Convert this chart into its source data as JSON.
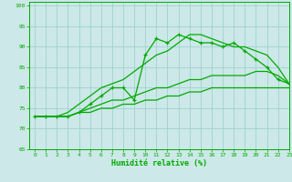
{
  "title": "",
  "xlabel": "Humidité relative (%)",
  "ylabel": "",
  "bg_color": "#cce8e8",
  "line_color": "#00aa00",
  "xlim": [
    -0.5,
    23
  ],
  "ylim": [
    65,
    101
  ],
  "xticks": [
    0,
    1,
    2,
    3,
    4,
    5,
    6,
    7,
    8,
    9,
    10,
    11,
    12,
    13,
    14,
    15,
    16,
    17,
    18,
    19,
    20,
    21,
    22,
    23
  ],
  "yticks": [
    65,
    70,
    75,
    80,
    85,
    90,
    95,
    100
  ],
  "grid_color": "#99cccc",
  "x": [
    0,
    1,
    2,
    3,
    4,
    5,
    6,
    7,
    8,
    9,
    10,
    11,
    12,
    13,
    14,
    15,
    16,
    17,
    18,
    19,
    20,
    21,
    22,
    23
  ],
  "y_jagged": [
    73,
    73,
    73,
    73,
    74,
    76,
    78,
    80,
    80,
    77,
    88,
    92,
    91,
    93,
    92,
    91,
    91,
    90,
    91,
    89,
    87,
    85,
    82,
    81
  ],
  "y_line1": [
    73,
    73,
    73,
    74,
    76,
    78,
    80,
    81,
    82,
    84,
    86,
    88,
    89,
    91,
    93,
    93,
    92,
    91,
    90,
    90,
    89,
    88,
    85,
    81
  ],
  "y_line2": [
    73,
    73,
    73,
    73,
    74,
    75,
    76,
    77,
    77,
    78,
    79,
    80,
    80,
    81,
    82,
    82,
    83,
    83,
    83,
    83,
    84,
    84,
    83,
    81
  ],
  "y_line3": [
    73,
    73,
    73,
    73,
    74,
    74,
    75,
    75,
    76,
    76,
    77,
    77,
    78,
    78,
    79,
    79,
    80,
    80,
    80,
    80,
    80,
    80,
    80,
    80
  ]
}
